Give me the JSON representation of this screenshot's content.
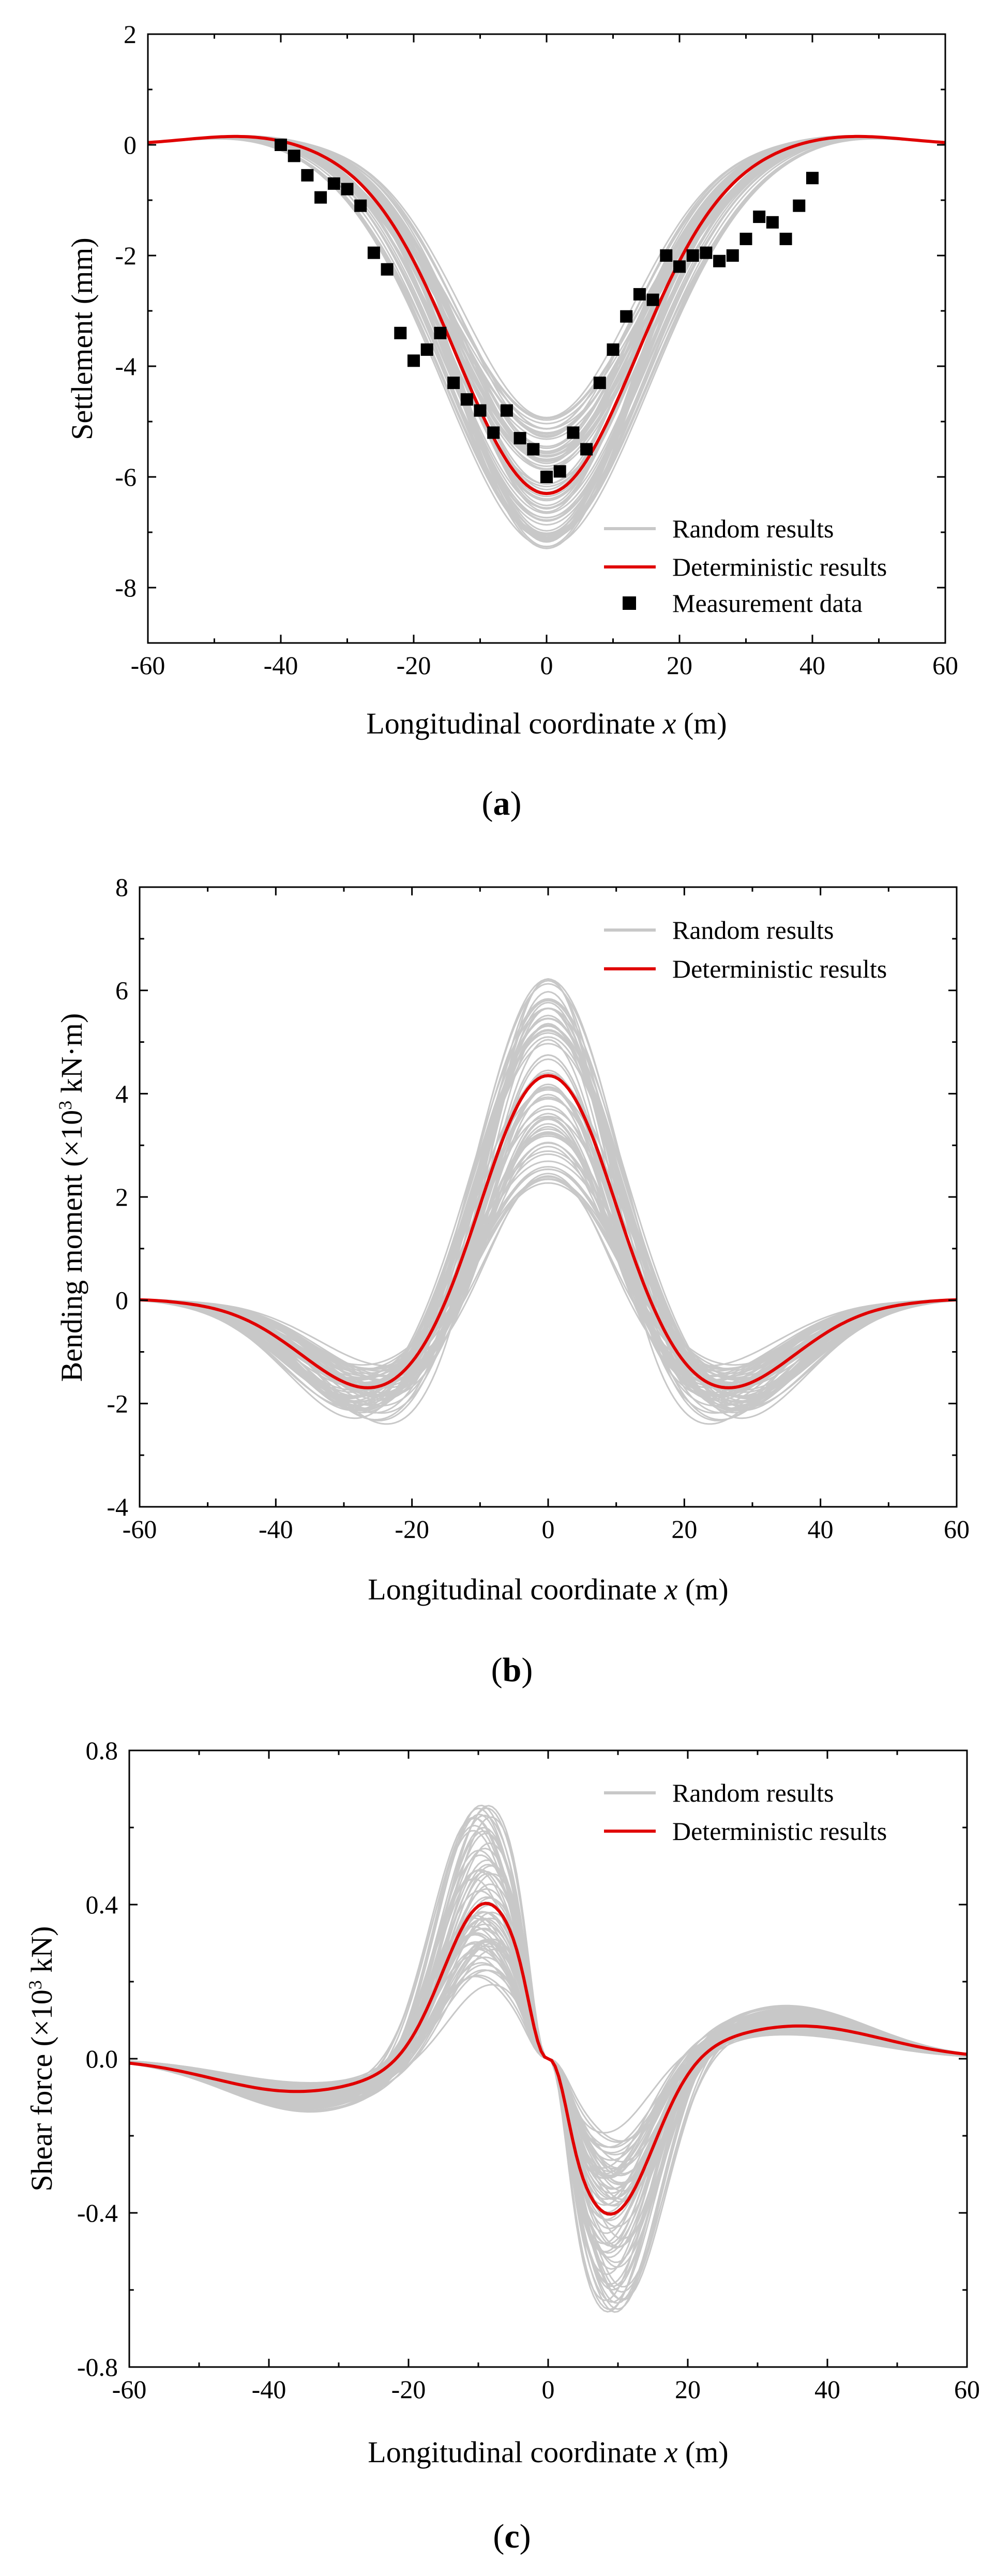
{
  "chart_data": [
    {
      "type": "line",
      "panel": "a",
      "caption": "(a)",
      "caption_open": "(",
      "caption_letter": "a",
      "caption_close": ")",
      "xlabel_prefix": "Longitudinal coordinate ",
      "xlabel_var": "x",
      "xlabel_suffix": " (m)",
      "ylabel": "Settlement (mm)",
      "xlim": [
        -60,
        60
      ],
      "ylim": [
        -9,
        2
      ],
      "xticks": [
        -60,
        -40,
        -20,
        0,
        20,
        40,
        60
      ],
      "yticks": [
        -8,
        -6,
        -4,
        -2,
        0,
        2
      ],
      "ytick_labels": [
        "-8",
        "-6",
        "-4",
        "-2",
        "0",
        "2"
      ],
      "xtick_labels": [
        "-60",
        "-40",
        "-20",
        "0",
        "20",
        "40",
        "60"
      ],
      "legend_position": "bottom-right",
      "legend": [
        {
          "label": "Random results",
          "style": "line",
          "color": "#c8c8c8"
        },
        {
          "label": "Deterministic results",
          "style": "line",
          "color": "#e00000"
        },
        {
          "label": "Measurement data",
          "style": "square",
          "color": "#000000"
        }
      ],
      "series": [
        {
          "name": "Deterministic results",
          "kind": "settlement",
          "params": {
            "amp": -6.3,
            "width": 13.5,
            "hump": 0.75,
            "center": 0
          }
        },
        {
          "name": "Random results envelope",
          "kind": "settlement_random",
          "params": {
            "amp_min": -4.9,
            "amp_max": -7.3,
            "width_min": 12.5,
            "width_max": 15.5
          }
        },
        {
          "name": "Measurement data",
          "kind": "points",
          "x": [
            -40,
            -38,
            -36,
            -34,
            -32,
            -30,
            -28,
            -26,
            -24,
            -22,
            -20,
            -18,
            -16,
            -14,
            -12,
            -10,
            -8,
            -6,
            -4,
            -2,
            0,
            2,
            4,
            6,
            8,
            10,
            12,
            14,
            16,
            18,
            20,
            22,
            24,
            26,
            28,
            30,
            32,
            34,
            36,
            38,
            40
          ],
          "y": [
            0.0,
            -0.2,
            -0.55,
            -0.95,
            -0.7,
            -0.8,
            -1.1,
            -1.95,
            -2.25,
            -3.4,
            -3.9,
            -3.7,
            -3.4,
            -4.3,
            -4.6,
            -4.8,
            -5.2,
            -4.8,
            -5.3,
            -5.5,
            -6.0,
            -5.9,
            -5.2,
            -5.5,
            -4.3,
            -3.7,
            -3.1,
            -2.7,
            -2.8,
            -2.0,
            -2.2,
            -2.0,
            -1.95,
            -2.1,
            -2.0,
            -1.7,
            -1.3,
            -1.4,
            -1.7,
            -1.1,
            -0.6
          ]
        }
      ]
    },
    {
      "type": "line",
      "panel": "b",
      "caption": "(b)",
      "caption_open": "(",
      "caption_letter": "b",
      "caption_close": ")",
      "xlabel_prefix": "Longitudinal coordinate ",
      "xlabel_var": "x",
      "xlabel_suffix": " (m)",
      "ylabel_main": "Bending moment (×10",
      "ylabel_sup": "3",
      "ylabel_end": " kN·m)",
      "xlim": [
        -60,
        60
      ],
      "ylim": [
        -4,
        8
      ],
      "xticks": [
        -60,
        -40,
        -20,
        0,
        20,
        40,
        60
      ],
      "yticks": [
        -4,
        -2,
        0,
        2,
        4,
        6,
        8
      ],
      "ytick_labels": [
        "-4",
        "-2",
        "0",
        "2",
        "4",
        "6",
        "8"
      ],
      "xtick_labels": [
        "-60",
        "-40",
        "-20",
        "0",
        "20",
        "40",
        "60"
      ],
      "legend_position": "top-right",
      "legend": [
        {
          "label": "Random results",
          "style": "line",
          "color": "#c8c8c8"
        },
        {
          "label": "Deterministic results",
          "style": "line",
          "color": "#e00000"
        }
      ],
      "series": [
        {
          "name": "Deterministic results",
          "kind": "moment",
          "params": {
            "peak": 4.35,
            "trough": -1.78,
            "trough_x": 25
          }
        },
        {
          "name": "Random results envelope",
          "kind": "moment_random",
          "params": {
            "peak_min": 2.25,
            "peak_max": 6.25,
            "trough_min": -1.2,
            "trough_max": -2.55
          }
        }
      ]
    },
    {
      "type": "line",
      "panel": "c",
      "caption": "(c)",
      "caption_open": "(",
      "caption_letter": "c",
      "caption_close": ")",
      "xlabel_prefix": "Longitudinal coordinate ",
      "xlabel_var": "x",
      "xlabel_suffix": " (m)",
      "ylabel_main": "Shear force (×10",
      "ylabel_sup": "3",
      "ylabel_end": " kN)",
      "xlim": [
        -60,
        60
      ],
      "ylim": [
        -0.8,
        0.8
      ],
      "xticks": [
        -60,
        -40,
        -20,
        0,
        20,
        40,
        60
      ],
      "yticks": [
        -0.8,
        -0.4,
        0.0,
        0.4,
        0.8
      ],
      "ytick_labels": [
        "-0.8",
        "-0.4",
        "0.0",
        "0.4",
        "0.8"
      ],
      "xtick_labels": [
        "-60",
        "-40",
        "-20",
        "0",
        "20",
        "40",
        "60"
      ],
      "legend_position": "top-right",
      "legend": [
        {
          "label": "Random results",
          "style": "line",
          "color": "#c8c8c8"
        },
        {
          "label": "Deterministic results",
          "style": "line",
          "color": "#e00000"
        }
      ],
      "series": [
        {
          "name": "Deterministic results",
          "kind": "shear",
          "params": {
            "peak": 0.41,
            "peak_x": -9,
            "tail": -0.085,
            "tail_x": -36
          }
        },
        {
          "name": "Random results envelope",
          "kind": "shear_random",
          "params": {
            "peak_min": 0.2,
            "peak_max": 0.68
          }
        }
      ]
    }
  ]
}
